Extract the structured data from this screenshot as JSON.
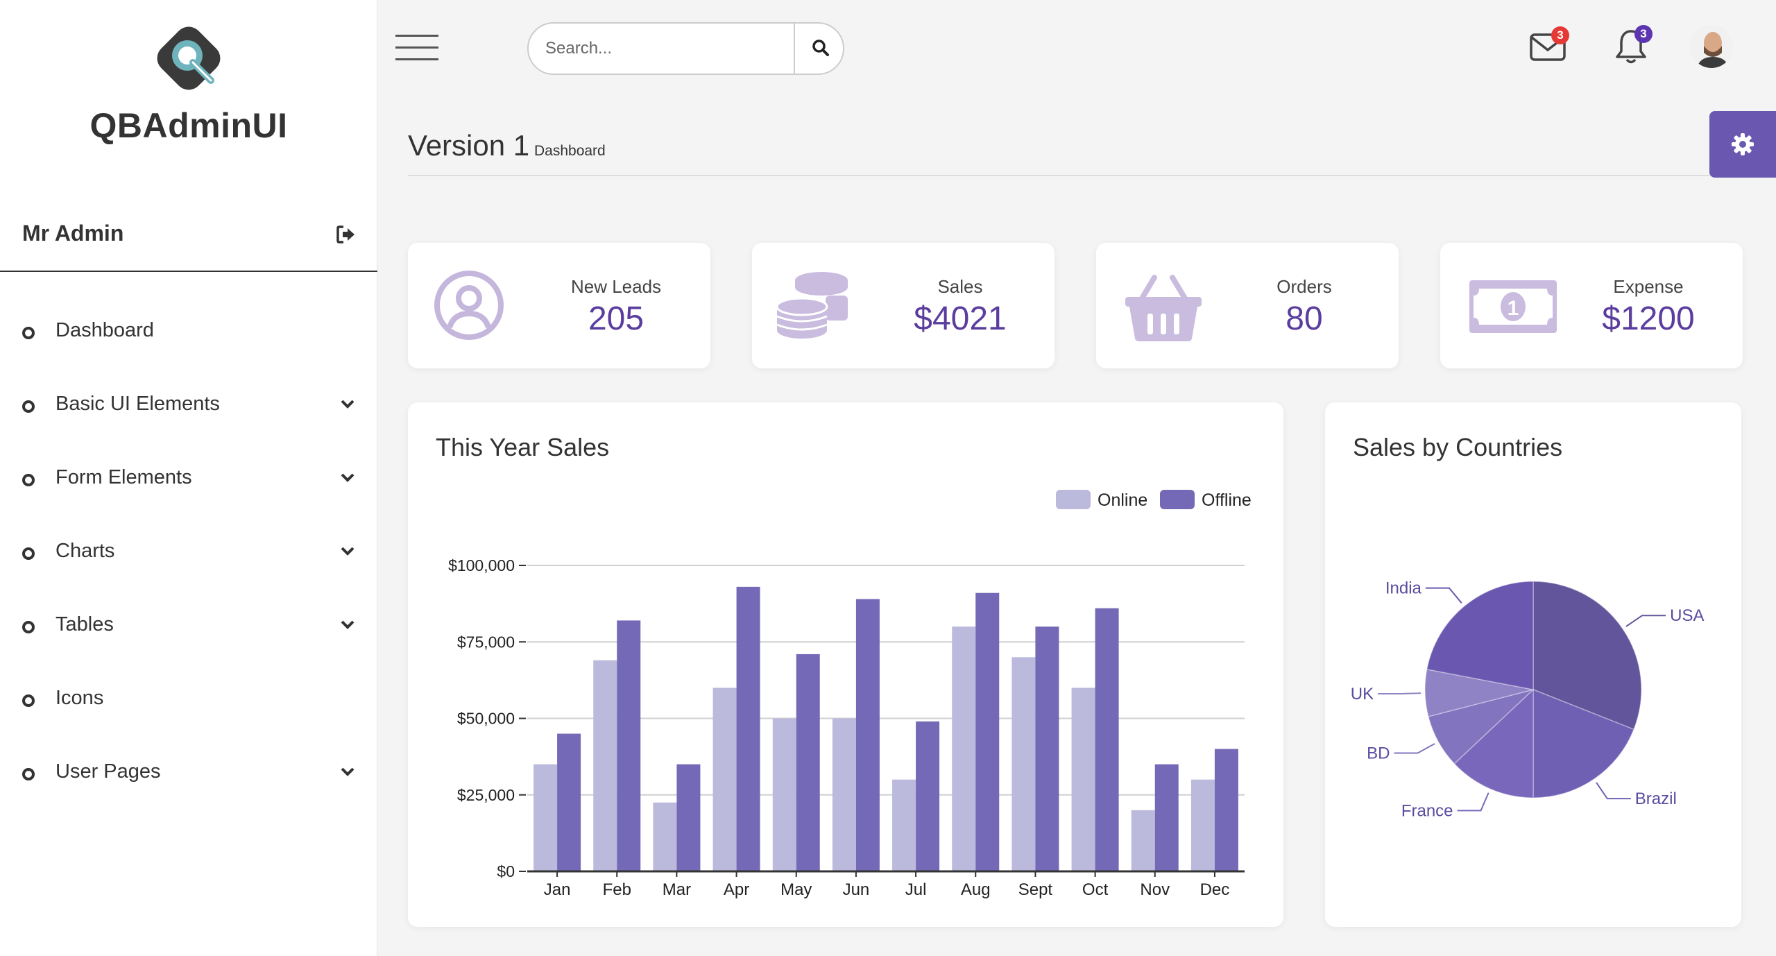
{
  "app": {
    "brand": "QBAdminUI"
  },
  "sidebar": {
    "user": "Mr Admin",
    "items": [
      {
        "label": "Dashboard",
        "has_submenu": false
      },
      {
        "label": "Basic UI Elements",
        "has_submenu": true
      },
      {
        "label": "Form Elements",
        "has_submenu": true
      },
      {
        "label": "Charts",
        "has_submenu": true
      },
      {
        "label": "Tables",
        "has_submenu": true
      },
      {
        "label": "Icons",
        "has_submenu": false
      },
      {
        "label": "User Pages",
        "has_submenu": true
      }
    ]
  },
  "topbar": {
    "search_placeholder": "Search...",
    "mail_count": "3",
    "notification_count": "3"
  },
  "page": {
    "title": "Version 1",
    "subtitle": "Dashboard"
  },
  "stats": [
    {
      "label": "New Leads",
      "value": "205",
      "icon": "user-circle-icon"
    },
    {
      "label": "Sales",
      "value": "$4021",
      "icon": "coins-icon"
    },
    {
      "label": "Orders",
      "value": "80",
      "icon": "basket-icon"
    },
    {
      "label": "Expense",
      "value": "$1200",
      "icon": "money-bill-icon"
    }
  ],
  "colors": {
    "accent": "#6a58b0",
    "online": "#bbb9dc",
    "offline": "#7469b6",
    "badge_mail": "#e53935",
    "badge_bell": "#5e35b1"
  },
  "chart_data": [
    {
      "type": "bar",
      "title": "This Year Sales",
      "categories": [
        "Jan",
        "Feb",
        "Mar",
        "Apr",
        "May",
        "Jun",
        "Jul",
        "Aug",
        "Sept",
        "Oct",
        "Nov",
        "Dec"
      ],
      "series": [
        {
          "name": "Online",
          "values": [
            35000,
            69000,
            22500,
            60000,
            50000,
            50000,
            30000,
            80000,
            70000,
            60000,
            20000,
            30000
          ]
        },
        {
          "name": "Offline",
          "values": [
            45000,
            82000,
            35000,
            93000,
            71000,
            89000,
            49000,
            91000,
            80000,
            86000,
            35000,
            40000
          ]
        }
      ],
      "ylim": [
        0,
        100000
      ],
      "yticks": [
        "$0",
        "$25,000",
        "$50,000",
        "$75,000",
        "$100,000"
      ],
      "grid": true,
      "legend": "top-right"
    },
    {
      "type": "pie",
      "title": "Sales by Countries",
      "slices": [
        {
          "label": "USA",
          "value": 31,
          "color": "#62559c"
        },
        {
          "label": "Brazil",
          "value": 19,
          "color": "#6f60b4"
        },
        {
          "label": "France",
          "value": 13,
          "color": "#7867ba"
        },
        {
          "label": "BD",
          "value": 8,
          "color": "#8374bf"
        },
        {
          "label": "UK",
          "value": 7,
          "color": "#8f83c5"
        },
        {
          "label": "India",
          "value": 22,
          "color": "#6a58b0"
        }
      ]
    }
  ]
}
